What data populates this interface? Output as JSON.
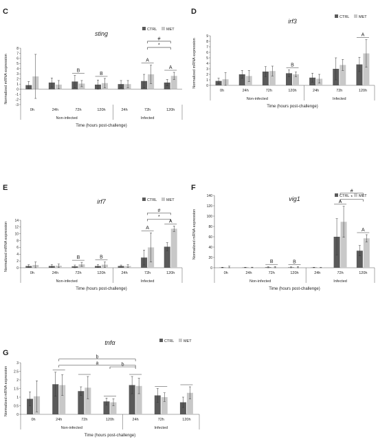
{
  "colors": {
    "ctrl": "#5a5a5a",
    "met": "#c8c8c8",
    "axis": "#555555",
    "grid": "#999999"
  },
  "chart_data": [
    {
      "panel": "C",
      "type": "bar",
      "title": "sting",
      "ylabel": "Normalized mRNA expression",
      "xlabel": "Time (hours post-challenge)",
      "ylim": [
        -3,
        8
      ],
      "yticks": [
        -3,
        -2,
        -1,
        0,
        1,
        2,
        3,
        4,
        5,
        6,
        7,
        8
      ],
      "legend": [
        "CTRL",
        "MET"
      ],
      "legend_position": "top-right",
      "groups": [
        {
          "label": "Non-infected",
          "categories": [
            "0h",
            "24h",
            "72h",
            "120h"
          ]
        },
        {
          "label": "Infected",
          "categories": [
            "24h",
            "72h",
            "120h"
          ]
        }
      ],
      "series": [
        {
          "name": "CTRL",
          "values": [
            0.8,
            1.3,
            1.5,
            0.9,
            1.0,
            1.6,
            1.3
          ],
          "errors": [
            0.7,
            0.9,
            1.2,
            0.9,
            0.7,
            1.3,
            0.6
          ]
        },
        {
          "name": "MET",
          "values": [
            2.5,
            0.9,
            1.1,
            1.2,
            1.0,
            2.9,
            2.6
          ],
          "errors": [
            4.3,
            0.8,
            0.6,
            0.9,
            0.7,
            1.8,
            0.7
          ]
        }
      ],
      "annotations": [
        {
          "label": "B",
          "index": 2
        },
        {
          "label": "B",
          "index": 3
        },
        {
          "label": "A",
          "index": 5
        },
        {
          "label": "A",
          "index": 6
        }
      ],
      "brackets": [
        {
          "label": "*",
          "from": 5,
          "to": 6,
          "level": 0
        },
        {
          "label": "#",
          "from": 5,
          "to": 6,
          "level": 1
        }
      ]
    },
    {
      "panel": "D",
      "type": "bar",
      "title": "irf3",
      "ylabel": "Normalized mRNA expression",
      "xlabel": "Time (hours post-challenge)",
      "ylim": [
        0,
        9
      ],
      "yticks": [
        0,
        1,
        2,
        3,
        4,
        5,
        6,
        7,
        8,
        9
      ],
      "legend": [
        "CTRL",
        "MET"
      ],
      "legend_position": "top-right",
      "groups": [
        {
          "label": "Non-infected",
          "categories": [
            "0h",
            "24h",
            "72h",
            "120h"
          ]
        },
        {
          "label": "Infected",
          "categories": [
            "24h",
            "72h",
            "120h"
          ]
        }
      ],
      "series": [
        {
          "name": "CTRL",
          "values": [
            0.8,
            2.0,
            2.5,
            2.2,
            1.4,
            3.0,
            3.8
          ],
          "errors": [
            0.5,
            0.7,
            0.9,
            0.6,
            0.8,
            2.0,
            1.3
          ]
        },
        {
          "name": "MET",
          "values": [
            1.1,
            1.7,
            2.6,
            2.0,
            1.2,
            3.7,
            5.8
          ],
          "errors": [
            1.2,
            1.0,
            0.9,
            0.4,
            0.8,
            1.0,
            2.5
          ]
        }
      ],
      "annotations": [
        {
          "label": "B",
          "index": 3
        },
        {
          "label": "A",
          "index": 6
        }
      ],
      "brackets": []
    },
    {
      "panel": "E",
      "type": "bar",
      "title": "irf7",
      "ylabel": "Normalized mRNA expression",
      "xlabel": "Time (hours post-challenge)",
      "ylim": [
        0,
        14
      ],
      "yticks": [
        0,
        2,
        4,
        6,
        8,
        10,
        12,
        14
      ],
      "legend": [
        "CTRL",
        "MET"
      ],
      "legend_position": "top-right",
      "groups": [
        {
          "label": "Non-infected",
          "categories": [
            "0h",
            "24h",
            "72h",
            "120h"
          ]
        },
        {
          "label": "Infected",
          "categories": [
            "24h",
            "72h",
            "120h"
          ]
        }
      ],
      "series": [
        {
          "name": "CTRL",
          "values": [
            0.5,
            0.5,
            0.4,
            0.5,
            0.5,
            3.0,
            6.2
          ],
          "errors": [
            0.4,
            0.4,
            0.4,
            0.4,
            0.3,
            2.2,
            1.2
          ]
        },
        {
          "name": "MET",
          "values": [
            0.8,
            0.6,
            1.0,
            0.9,
            0.5,
            6.0,
            11.5
          ],
          "errors": [
            0.9,
            0.5,
            0.6,
            0.8,
            0.4,
            4.3,
            0.8
          ]
        }
      ],
      "annotations": [
        {
          "label": "B",
          "index": 2
        },
        {
          "label": "B",
          "index": 3
        },
        {
          "label": "A",
          "index": 5
        },
        {
          "label": "A",
          "index": 6
        }
      ],
      "brackets": [
        {
          "label": "*",
          "from": 5,
          "to": 6,
          "level": 0
        },
        {
          "label": "#",
          "from": 5,
          "to": 6,
          "level": 1
        }
      ]
    },
    {
      "panel": "F",
      "type": "bar",
      "title": "vig1",
      "ylabel": "Normalized mRNA expression",
      "xlabel": "Time (hours post-challenge)",
      "ylim": [
        0,
        140
      ],
      "yticks": [
        0,
        20,
        40,
        60,
        80,
        100,
        120,
        140
      ],
      "legend": [
        "CTRL",
        "MET"
      ],
      "legend_position": "top-right",
      "groups": [
        {
          "label": "Non-infected",
          "categories": [
            "0h",
            "24h",
            "72h",
            "120h"
          ]
        },
        {
          "label": "Infected",
          "categories": [
            "24h",
            "72h",
            "120h"
          ]
        }
      ],
      "series": [
        {
          "name": "CTRL",
          "values": [
            0.5,
            0.5,
            1.0,
            0.8,
            0.5,
            60,
            33
          ],
          "errors": [
            0.5,
            0.4,
            1.0,
            0.8,
            0.4,
            35,
            10
          ]
        },
        {
          "name": "MET",
          "values": [
            1.0,
            0.6,
            1.2,
            1.0,
            0.4,
            89,
            57
          ],
          "errors": [
            2.0,
            0.5,
            1.2,
            1.0,
            0.3,
            30,
            7
          ]
        }
      ],
      "annotations": [
        {
          "label": "B",
          "index": 2
        },
        {
          "label": "B",
          "index": 3
        },
        {
          "label": "A",
          "index": 5
        },
        {
          "label": "A",
          "index": 6
        }
      ],
      "brackets": [
        {
          "label": "*",
          "from": 5,
          "to": 6,
          "level": 0
        },
        {
          "label": "#",
          "from": 5,
          "to": 6,
          "level": 1
        }
      ]
    },
    {
      "panel": "G",
      "type": "bar",
      "title": "tnfα",
      "ylabel": "Normalized mRNA expression",
      "xlabel": "Time (hours post-challenge)",
      "ylim": [
        0,
        3
      ],
      "yticks": [
        0,
        0.5,
        1,
        1.5,
        2,
        2.5,
        3
      ],
      "legend": [
        "CTRL",
        "MET"
      ],
      "legend_position": "top-right",
      "groups": [
        {
          "label": "Non-infected",
          "categories": [
            "0h",
            "24h",
            "72h",
            "120h"
          ]
        },
        {
          "label": "Infected",
          "categories": [
            "24h",
            "72h",
            "120h"
          ]
        }
      ],
      "series": [
        {
          "name": "CTRL",
          "values": [
            0.9,
            1.75,
            1.35,
            0.75,
            1.7,
            1.1,
            0.7
          ],
          "errors": [
            0.4,
            0.7,
            0.25,
            0.2,
            0.5,
            0.4,
            0.3
          ]
        },
        {
          "name": "MET",
          "values": [
            1.05,
            1.7,
            1.55,
            0.7,
            1.65,
            1.0,
            1.25
          ],
          "errors": [
            0.9,
            0.6,
            0.65,
            0.2,
            0.45,
            0.25,
            0.35
          ]
        }
      ],
      "annotations": [],
      "caps": [
        1,
        2,
        3,
        4,
        5,
        6
      ],
      "brackets": [
        {
          "label": "a",
          "from": 1,
          "to": 4,
          "level": 0
        },
        {
          "label": "b",
          "from": 1,
          "to": 4,
          "level": 1
        },
        {
          "label": "b",
          "from": 3,
          "to": 4,
          "level": -1
        }
      ]
    }
  ]
}
